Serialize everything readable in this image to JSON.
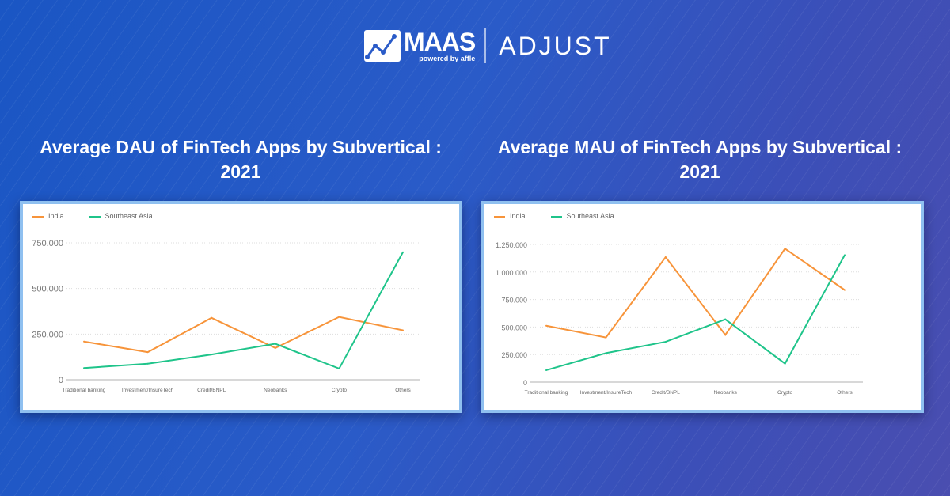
{
  "header": {
    "logo_primary": "MAAS",
    "logo_sub": "powered by affle",
    "logo_secondary": "ADJUST"
  },
  "colors": {
    "India": "#f7943a",
    "Southeast Asia": "#1fc48a"
  },
  "chart_data": [
    {
      "type": "line",
      "title": "Average DAU of FinTech Apps by Subvertical : 2021",
      "categories": [
        "Traditional banking",
        "Investment/InsureTech",
        "Credit/BNPL",
        "Neobanks",
        "Crypto",
        "Others"
      ],
      "series": [
        {
          "name": "India",
          "values": [
            209000,
            151000,
            339000,
            174000,
            344000,
            271000
          ]
        },
        {
          "name": "Southeast Asia",
          "values": [
            64000,
            88000,
            138000,
            197000,
            61000,
            699000
          ]
        }
      ],
      "yticks": [
        "0",
        "250.000",
        "500.000",
        "750.000"
      ],
      "ylim": [
        0,
        750000
      ],
      "grid": true,
      "legend": "top-left"
    },
    {
      "type": "line",
      "title": "Average MAU of FinTech Apps by Subvertical : 2021",
      "categories": [
        "Traditional banking",
        "Investment/InsureTech",
        "Credit/BNPL",
        "Neobanks",
        "Crypto",
        "Others"
      ],
      "series": [
        {
          "name": "India",
          "values": [
            512000,
            405000,
            1135000,
            429000,
            1212000,
            836000
          ]
        },
        {
          "name": "Southeast Asia",
          "values": [
            108000,
            263000,
            366000,
            570000,
            168000,
            1154000
          ]
        }
      ],
      "yticks": [
        "0",
        "250.000",
        "500.000",
        "750.000",
        "1.000.000",
        "1.250.000"
      ],
      "ylim": [
        0,
        1250000
      ],
      "grid": true,
      "legend": "top-left"
    }
  ]
}
